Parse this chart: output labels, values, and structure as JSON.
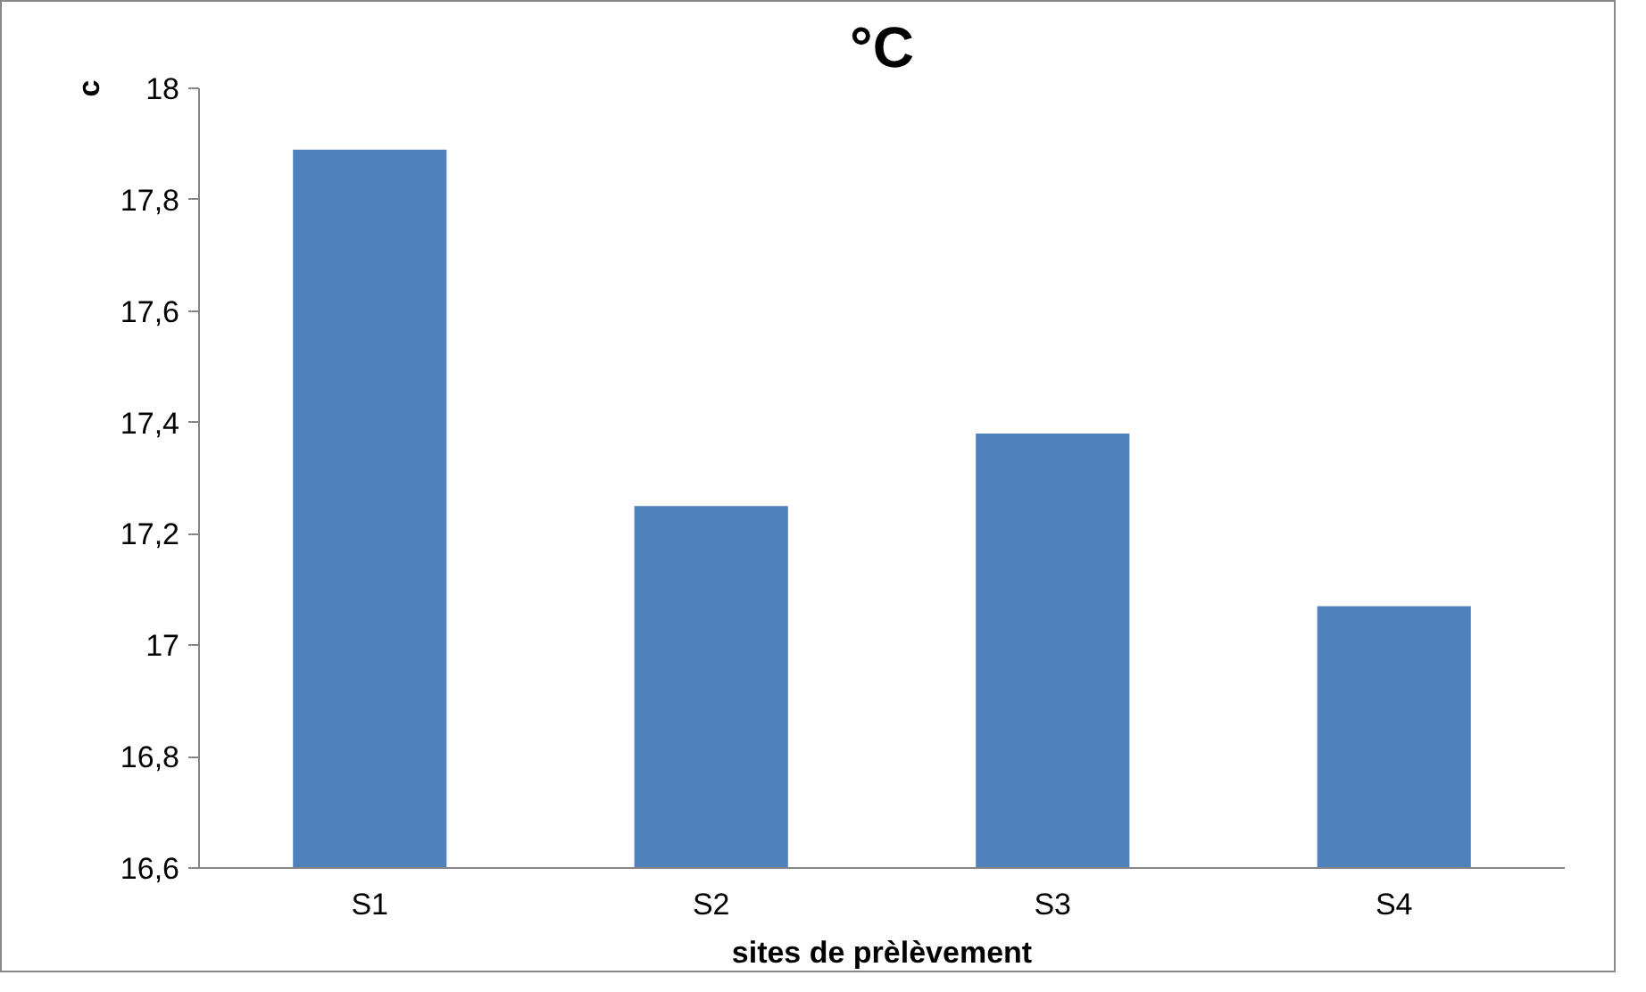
{
  "chart_data": {
    "type": "bar",
    "title": "°C",
    "ylabel": "c",
    "xlabel": "sites de prèlèvement",
    "categories": [
      "S1",
      "S2",
      "S3",
      "S4"
    ],
    "values": [
      17.89,
      17.25,
      17.38,
      17.07
    ],
    "color": "#4f81bd",
    "ylim": [
      16.6,
      18
    ],
    "yticks": [
      {
        "value": 16.6,
        "label": "16,6"
      },
      {
        "value": 16.8,
        "label": "16,8"
      },
      17,
      {
        "value": 17.2,
        "label": "17,2"
      },
      {
        "value": 17.4,
        "label": "17,4"
      },
      {
        "value": 17.6,
        "label": "17,6"
      },
      {
        "value": 17.8,
        "label": "17,8"
      },
      18
    ],
    "grid": false
  }
}
